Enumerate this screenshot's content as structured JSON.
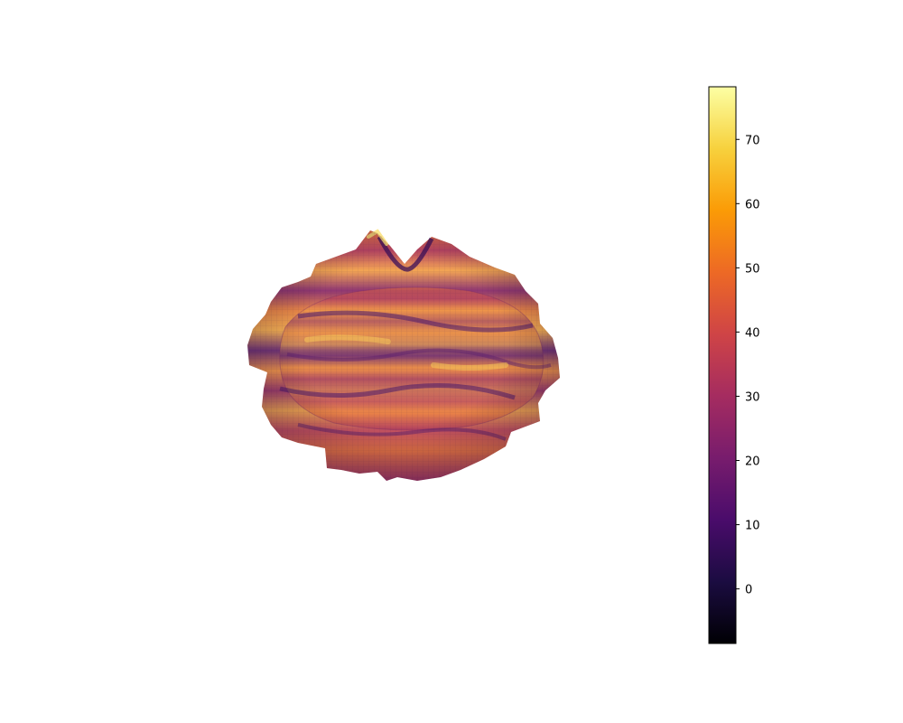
{
  "chart_data": {
    "type": "surface3d",
    "title": "",
    "xlabel": "",
    "ylabel": "",
    "zlabel": "",
    "axes_visible": false,
    "grid": false,
    "colormap": "inferno",
    "surface": {
      "shape": "irregular bumpy sphere",
      "value_range": [
        -8.5,
        78.2
      ]
    },
    "colorbar": {
      "placement": "right",
      "vmin": -8.5,
      "vmax": 78.2,
      "ticks": [
        0,
        10,
        20,
        30,
        40,
        50,
        60,
        70
      ],
      "tick_labels": [
        "0",
        "10",
        "20",
        "30",
        "40",
        "50",
        "60",
        "70"
      ],
      "stops": [
        "#000004",
        "#1b0c41",
        "#4a0c6b",
        "#781c6d",
        "#a52c60",
        "#cf4446",
        "#ed6925",
        "#fb9b06",
        "#f7d13d",
        "#fcffa4"
      ]
    }
  }
}
